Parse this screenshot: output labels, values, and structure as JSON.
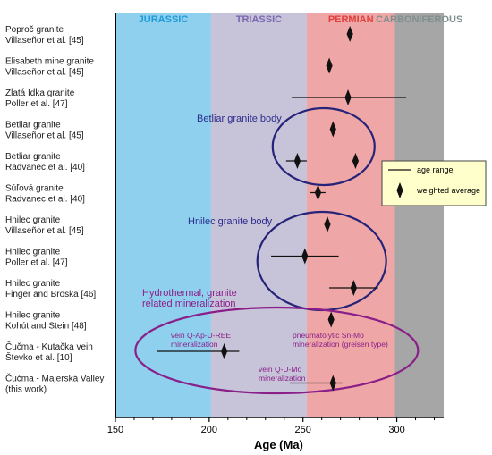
{
  "chart_data": {
    "type": "range-dot",
    "xlabel": "Age (Ma)",
    "xlim": [
      150,
      325
    ],
    "x_ticks": [
      "150",
      "200",
      "250",
      "300"
    ],
    "x_tick_values": [
      150,
      200,
      250,
      300
    ],
    "periods": [
      {
        "name": "JURASSIC",
        "from": 150,
        "to": 201,
        "color": "#8fd0ee",
        "text_color": "#1e9bd7"
      },
      {
        "name": "TRIASSIC",
        "from": 201,
        "to": 252,
        "color": "#c7c3d8",
        "text_color": "#7a67b0"
      },
      {
        "name": "PERMIAN",
        "from": 252,
        "to": 299,
        "color": "#efa6a6",
        "text_color": "#e0403d"
      },
      {
        "name": "CARBONIFEROUS",
        "from": 299,
        "to": 325,
        "color": "#a6a6a6",
        "text_color": "#7f8f8f"
      }
    ],
    "samples": [
      {
        "label": [
          "Poproč granite",
          "Villaseñor et al. [45]"
        ],
        "ranges": [],
        "points": [
          {
            "x": 275
          }
        ]
      },
      {
        "label": [
          "Elisabeth mine granite",
          "Villaseñor et al. [45]"
        ],
        "ranges": [],
        "points": [
          {
            "x": 264
          }
        ]
      },
      {
        "label": [
          "Zlatá Idka granite",
          "Poller et al. [47]"
        ],
        "ranges": [
          {
            "from": 244,
            "to": 305
          }
        ],
        "points": [
          {
            "x": 274
          }
        ]
      },
      {
        "label": [
          "Betliar granite",
          "Villaseñor et al. [45]"
        ],
        "ranges": [],
        "points": [
          {
            "x": 266
          }
        ]
      },
      {
        "label": [
          "Betliar granite",
          "Radvanec et al. [40]"
        ],
        "ranges": [
          {
            "from": 241,
            "to": 252
          }
        ],
        "points": [
          {
            "x": 247
          },
          {
            "x": 278
          }
        ]
      },
      {
        "label": [
          "Súľová granite",
          "Radvanec et al. [40]"
        ],
        "ranges": [
          {
            "from": 254,
            "to": 262
          }
        ],
        "points": [
          {
            "x": 258
          }
        ]
      },
      {
        "label": [
          "Hnilec granite",
          "Villaseñor et al. [45]"
        ],
        "ranges": [],
        "points": [
          {
            "x": 263
          }
        ]
      },
      {
        "label": [
          "Hnilec granite",
          "Poller et al. [47]"
        ],
        "ranges": [
          {
            "from": 233,
            "to": 269
          }
        ],
        "points": [
          {
            "x": 251
          }
        ]
      },
      {
        "label": [
          "Hnilec granite",
          "Finger and Broska [46]"
        ],
        "ranges": [
          {
            "from": 264,
            "to": 290
          }
        ],
        "points": [
          {
            "x": 277
          }
        ]
      },
      {
        "label": [
          "Hnilec granite",
          "Kohút and Stein [48]"
        ],
        "ranges": [],
        "points": [
          {
            "x": 265
          }
        ]
      },
      {
        "label": [
          "Čučma - Kutačka vein",
          "Števko et al. [10]"
        ],
        "ranges": [
          {
            "from": 172,
            "to": 216
          }
        ],
        "points": [
          {
            "x": 208
          }
        ]
      },
      {
        "label": [
          "Čučma - Majerská Valley",
          "(this work)"
        ],
        "ranges": [
          {
            "from": 243,
            "to": 271
          }
        ],
        "points": [
          {
            "x": 266
          }
        ]
      }
    ],
    "annotations": {
      "betliar": "Betliar granite body",
      "hnilec": "Hnilec granite body",
      "hydro_line1": "Hydrothermal, granite",
      "hydro_line2": "related mineralization",
      "vein_ree_1": "vein Q-Ap-U-REE",
      "vein_ree_2": "mineralization",
      "snmo_1": "pneumatolytic Sn-Mo",
      "snmo_2": "mineralization (greisen type)",
      "vein_umo_1": "vein Q-U-Mo",
      "vein_umo_2": "mineralization"
    },
    "legend": {
      "placement": "right",
      "items": [
        "age range",
        "weighted average"
      ]
    }
  }
}
